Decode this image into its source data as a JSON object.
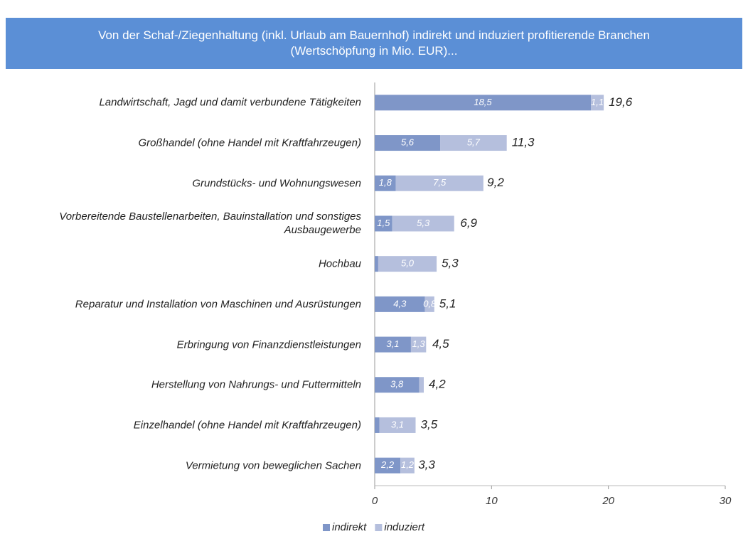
{
  "chart_data": {
    "type": "stacked-barh",
    "title": "Von der Schaf-/Ziegenhaltung (inkl. Urlaub am Bauernhof) indirekt und induziert profitierende Branchen\n(Wertschöpfung in Mio. EUR)...",
    "categories": [
      "Landwirtschaft, Jagd und damit verbundene Tätigkeiten",
      "Großhandel (ohne Handel mit Kraftfahrzeugen)",
      "Grundstücks- und Wohnungswesen",
      "Vorbereitende Baustellenarbeiten, Bauinstallation und sonstiges Ausbaugewerbe",
      "Hochbau",
      "Reparatur und Installation von Maschinen und Ausrüstungen",
      "Erbringung von Finanzdienstleistungen",
      "Herstellung von Nahrungs- und Futtermitteln",
      "Einzelhandel (ohne Handel mit Kraftfahrzeugen)",
      "Vermietung von beweglichen Sachen"
    ],
    "series": [
      {
        "name": "indirekt",
        "color": "#7f96c8",
        "values": [
          18.5,
          5.6,
          1.8,
          1.5,
          0.3,
          4.3,
          3.1,
          3.8,
          0.4,
          2.2
        ],
        "value_labels": [
          "18,5",
          "5,6",
          "1,8",
          "1,5",
          null,
          "4,3",
          "3,1",
          "3,8",
          null,
          "2,2"
        ]
      },
      {
        "name": "induziert",
        "color": "#b5bfdd",
        "values": [
          1.1,
          5.7,
          7.5,
          5.3,
          5.0,
          0.8,
          1.3,
          0.4,
          3.1,
          1.2
        ],
        "value_labels": [
          "1,1",
          "5,7",
          "7,5",
          "5,3",
          "5,0",
          "0,8",
          "1,3",
          null,
          "3,1",
          "1,2"
        ]
      }
    ],
    "totals": [
      19.6,
      11.3,
      9.2,
      6.9,
      5.3,
      5.1,
      4.5,
      4.2,
      3.5,
      3.3
    ],
    "total_labels": [
      "19,6",
      "11,3",
      "9,2",
      "6,9",
      "5,3",
      "5,1",
      "4,5",
      "4,2",
      "3,5",
      "3,3"
    ],
    "xlim": [
      0,
      30
    ],
    "xticks": [
      0,
      10,
      20,
      30
    ],
    "legend": "bottom"
  }
}
